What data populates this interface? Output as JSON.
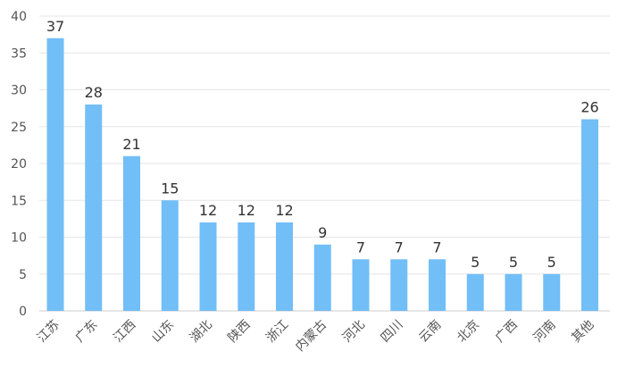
{
  "chart_data": {
    "type": "bar",
    "categories": [
      "江苏",
      "广东",
      "江西",
      "山东",
      "湖北",
      "陕西",
      "浙江",
      "内蒙古",
      "河北",
      "四川",
      "云南",
      "北京",
      "广西",
      "河南",
      "其他"
    ],
    "values": [
      37,
      28,
      21,
      15,
      12,
      12,
      12,
      9,
      7,
      7,
      7,
      5,
      5,
      5,
      26
    ],
    "title": "",
    "xlabel": "",
    "ylabel": "",
    "ylim": [
      0,
      40
    ],
    "yticks": [
      0,
      5,
      10,
      15,
      20,
      25,
      30,
      35,
      40
    ],
    "grid": true,
    "legend": "none",
    "colors": {
      "bar": "#72BEF7",
      "grid": "#e6e6e6",
      "text": "#555555"
    }
  }
}
